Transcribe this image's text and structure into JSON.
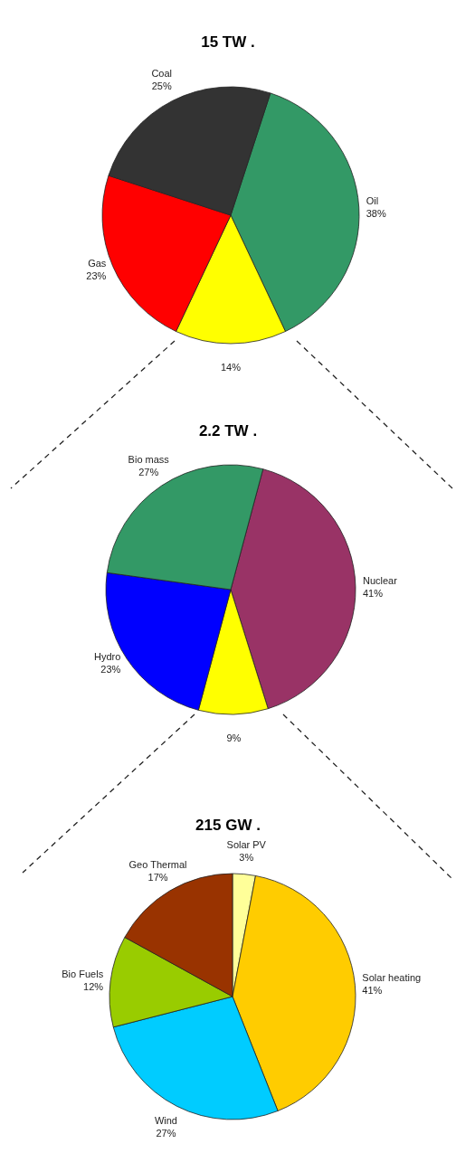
{
  "chart_data": [
    {
      "type": "pie",
      "title": "15 TW .",
      "categories": [
        "Oil",
        null,
        "Gas",
        "Coal"
      ],
      "values": [
        38,
        14,
        23,
        25
      ],
      "value_labels": [
        "38%",
        "14%",
        "23%",
        "25%"
      ],
      "colors": [
        "#339966",
        "#ffff00",
        "#ff0000",
        "#333333"
      ]
    },
    {
      "type": "pie",
      "title": "2.2 TW .",
      "categories": [
        "Nuclear",
        null,
        "Hydro",
        "Bio mass"
      ],
      "values": [
        41,
        9,
        23,
        27
      ],
      "value_labels": [
        "41%",
        "9%",
        "23%",
        "27%"
      ],
      "colors": [
        "#993366",
        "#ffff00",
        "#0000ff",
        "#339966"
      ]
    },
    {
      "type": "pie",
      "title": "215 GW .",
      "categories": [
        "Solar PV",
        "Solar heating",
        "Wind",
        "Bio Fuels",
        "Geo Thermal"
      ],
      "values": [
        3,
        41,
        27,
        12,
        17
      ],
      "value_labels": [
        "3%",
        "41%",
        "27%",
        "12%",
        "17%"
      ],
      "colors": [
        "#ffff99",
        "#ffcc00",
        "#00ccff",
        "#99cc00",
        "#993300"
      ]
    }
  ]
}
